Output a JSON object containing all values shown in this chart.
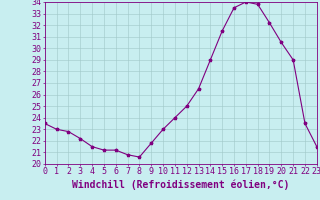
{
  "x": [
    0,
    1,
    2,
    3,
    4,
    5,
    6,
    7,
    8,
    9,
    10,
    11,
    12,
    13,
    14,
    15,
    16,
    17,
    18,
    19,
    20,
    21,
    22,
    23
  ],
  "y": [
    23.5,
    23.0,
    22.8,
    22.2,
    21.5,
    21.2,
    21.2,
    20.8,
    20.6,
    21.8,
    23.0,
    24.0,
    25.0,
    26.5,
    29.0,
    31.5,
    33.5,
    34.0,
    33.8,
    32.2,
    30.5,
    29.0,
    23.5,
    21.5
  ],
  "line_color": "#800080",
  "marker": "*",
  "marker_color": "#800080",
  "bg_color": "#c8eef0",
  "grid_color": "#a0c8c8",
  "xlabel": "Windchill (Refroidissement éolien,°C)",
  "ylabel": "",
  "xlim": [
    0,
    23
  ],
  "ylim": [
    20,
    34
  ],
  "yticks": [
    20,
    21,
    22,
    23,
    24,
    25,
    26,
    27,
    28,
    29,
    30,
    31,
    32,
    33,
    34
  ],
  "xticks": [
    0,
    1,
    2,
    3,
    4,
    5,
    6,
    7,
    8,
    9,
    10,
    11,
    12,
    13,
    14,
    15,
    16,
    17,
    18,
    19,
    20,
    21,
    22,
    23
  ],
  "tick_color": "#800080",
  "label_color": "#800080",
  "axis_color": "#800080",
  "font_size": 6,
  "xlabel_fontsize": 7,
  "linewidth": 0.8,
  "markersize": 2.5
}
